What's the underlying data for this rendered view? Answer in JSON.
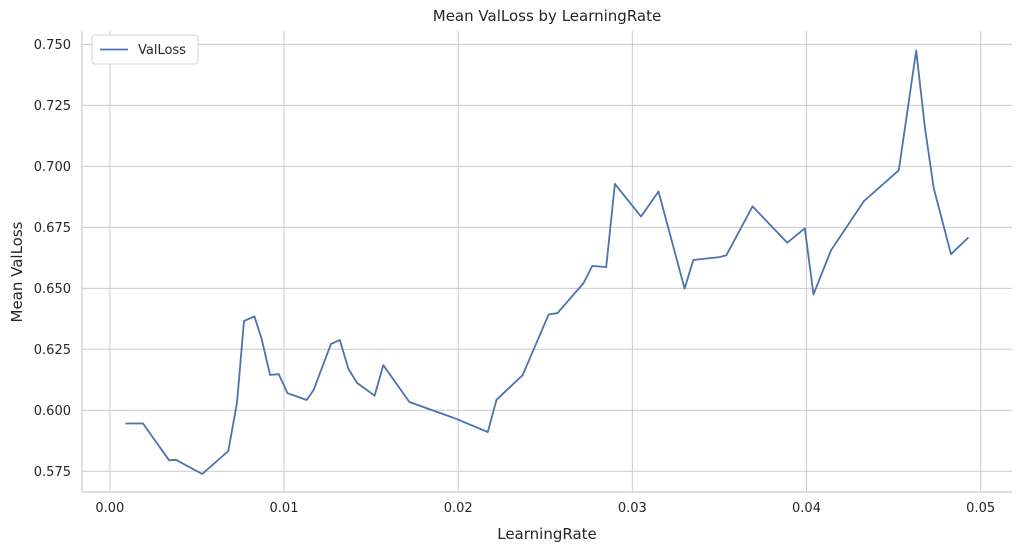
{
  "chart_data": {
    "type": "line",
    "title": "Mean ValLoss by LearningRate",
    "xlabel": "LearningRate",
    "ylabel": "Mean ValLoss",
    "xlim": [
      -0.0016,
      0.0518
    ],
    "ylim": [
      0.5665,
      0.7555
    ],
    "xticks": [
      0.0,
      0.01,
      0.02,
      0.03,
      0.04,
      0.05
    ],
    "xtick_labels": [
      "0.00",
      "0.01",
      "0.02",
      "0.03",
      "0.04",
      "0.05"
    ],
    "yticks": [
      0.575,
      0.6,
      0.625,
      0.65,
      0.675,
      0.7,
      0.725,
      0.75
    ],
    "ytick_labels": [
      "0.575",
      "0.600",
      "0.625",
      "0.650",
      "0.675",
      "0.700",
      "0.725",
      "0.750"
    ],
    "grid": true,
    "legend_position": "top-left",
    "series": [
      {
        "name": "ValLoss",
        "color": "#4c72b0",
        "x": [
          0.0009,
          0.0019,
          0.0034,
          0.0038,
          0.0053,
          0.0068,
          0.0073,
          0.0077,
          0.0083,
          0.0087,
          0.0092,
          0.0097,
          0.0102,
          0.0113,
          0.0117,
          0.0127,
          0.0132,
          0.0137,
          0.0142,
          0.0152,
          0.0157,
          0.0172,
          0.0197,
          0.0217,
          0.0222,
          0.0237,
          0.0252,
          0.0257,
          0.0272,
          0.0277,
          0.0285,
          0.029,
          0.0305,
          0.0315,
          0.033,
          0.0335,
          0.035,
          0.0354,
          0.0369,
          0.0389,
          0.0399,
          0.0404,
          0.0414,
          0.0433,
          0.0453,
          0.0463,
          0.0468,
          0.0473,
          0.0483,
          0.0493
        ],
        "values": [
          0.5946,
          0.5946,
          0.5795,
          0.5797,
          0.5739,
          0.5833,
          0.6031,
          0.6366,
          0.6385,
          0.6296,
          0.6145,
          0.6148,
          0.607,
          0.6042,
          0.6083,
          0.6272,
          0.6288,
          0.6169,
          0.6112,
          0.606,
          0.6185,
          0.6034,
          0.597,
          0.5911,
          0.6043,
          0.6144,
          0.6393,
          0.6398,
          0.6522,
          0.6592,
          0.6587,
          0.6928,
          0.6794,
          0.6897,
          0.6499,
          0.6616,
          0.6628,
          0.6636,
          0.6836,
          0.6687,
          0.6746,
          0.6475,
          0.6655,
          0.6858,
          0.6984,
          0.7475,
          0.716,
          0.6913,
          0.664,
          0.6709
        ]
      }
    ]
  }
}
